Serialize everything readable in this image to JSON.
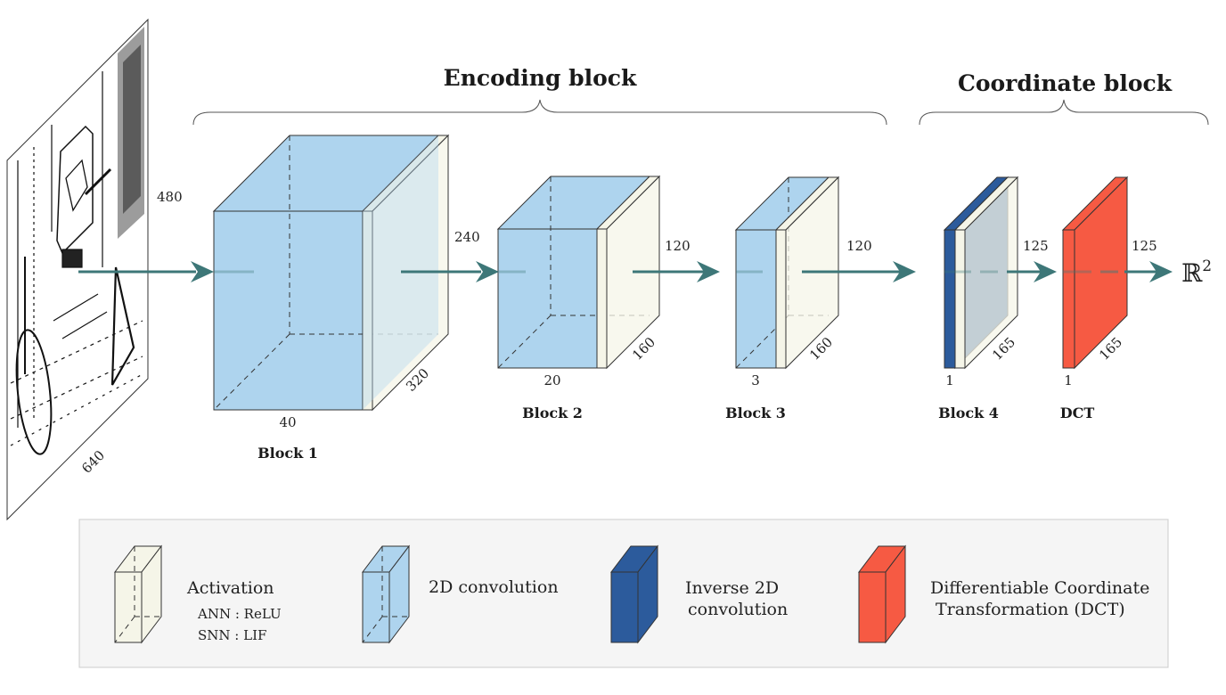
{
  "titles": {
    "encoding": "Encoding block",
    "coordinate": "Coordinate block"
  },
  "input": {
    "height": "480",
    "width": "640"
  },
  "blocks": [
    {
      "label": "Block 1",
      "channels": "40",
      "height": "",
      "width": "320"
    },
    {
      "label": "Block 2",
      "channels": "20",
      "height": "240",
      "width": "160"
    },
    {
      "label": "Block 3",
      "channels": "3",
      "height": "120",
      "width": "160"
    },
    {
      "label": "Block 4",
      "channels": "1",
      "height": "120",
      "width": "165"
    },
    {
      "label": "DCT",
      "channels": "1",
      "height": "125",
      "width": "165"
    }
  ],
  "output": {
    "height": "125",
    "symbol": "ℝ",
    "exponent": "2"
  },
  "legend": {
    "activation": {
      "title": "Activation",
      "ann": "ANN : ReLU",
      "snn": "SNN : LIF"
    },
    "conv": {
      "title": "2D convolution"
    },
    "inverse": {
      "line1": "Inverse 2D",
      "line2": "convolution"
    },
    "dct": {
      "line1": "Differentiable Coordinate",
      "line2": "Transformation (DCT)"
    }
  },
  "colors": {
    "conv": "#aed4ee",
    "activation": "#f5f5e8",
    "inverse": "#2c5b9c",
    "dct": "#f65a43",
    "arrow": "#3d7778",
    "legend_bg": "#f5f5f5"
  }
}
